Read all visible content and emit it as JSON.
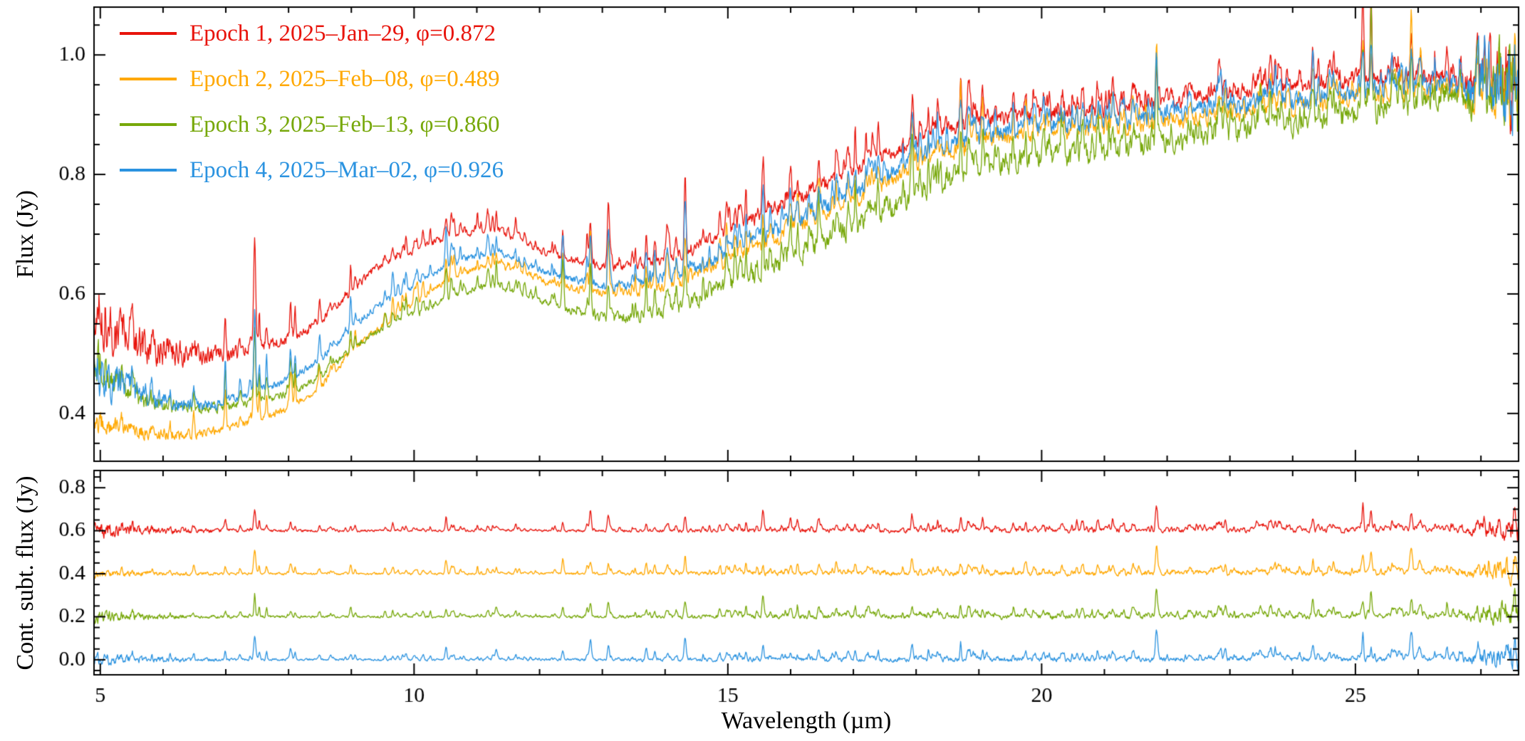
{
  "figure": {
    "background": "#ffffff",
    "axis_color": "#000000"
  },
  "legend": {
    "entries": [
      {
        "label": "Epoch 1, 2025–Jan–29, φ=0.872",
        "epoch": 1,
        "date": "2025–Jan–29",
        "phase": 0.872,
        "color": "#e8140c"
      },
      {
        "label": "Epoch 2, 2025–Feb–08, φ=0.489",
        "epoch": 2,
        "date": "2025–Feb–08",
        "phase": 0.489,
        "color": "#ffa800"
      },
      {
        "label": "Epoch 3, 2025–Feb–13, φ=0.860",
        "epoch": 3,
        "date": "2025–Feb–13",
        "phase": 0.86,
        "color": "#77a80a"
      },
      {
        "label": "Epoch 4, 2025–Mar–02, φ=0.926",
        "epoch": 4,
        "date": "2025–Mar–02",
        "phase": 0.926,
        "color": "#2b93e0"
      }
    ]
  },
  "emission_lines": {
    "wavelengths": [
      5.34,
      5.51,
      6.11,
      6.49,
      6.99,
      7.46,
      7.65,
      8.03,
      8.99,
      9.66,
      10.51,
      11.31,
      12.37,
      12.81,
      13.1,
      13.7,
      14.32,
      14.98,
      15.56,
      16.11,
      16.45,
      17.03,
      17.93,
      18.71,
      19.06,
      19.75,
      20.33,
      21.83,
      22.93,
      23.65,
      24.32,
      25.12,
      25.25,
      25.89,
      26.46,
      26.95
    ],
    "strengths": [
      0.25,
      0.2,
      0.2,
      0.25,
      0.3,
      1.0,
      0.3,
      0.2,
      0.3,
      0.25,
      0.4,
      0.3,
      0.45,
      0.6,
      0.3,
      0.3,
      0.7,
      0.4,
      0.6,
      0.35,
      0.3,
      0.45,
      0.4,
      0.65,
      0.4,
      0.35,
      0.3,
      0.9,
      0.4,
      0.35,
      0.5,
      0.9,
      0.8,
      0.7,
      0.4,
      0.5
    ]
  },
  "chart_data": [
    {
      "type": "line",
      "panel": "top",
      "title": "",
      "xlabel": "",
      "ylabel": "Flux (Jy)",
      "xlim": [
        4.9,
        27.6
      ],
      "ylim": [
        0.32,
        1.08
      ],
      "xticks": [
        5,
        10,
        15,
        20,
        25
      ],
      "yticks": [
        0.4,
        0.6,
        0.8,
        1.0
      ],
      "grid": false,
      "legend_position": "top-left",
      "x": [
        4.9,
        5.2,
        5.6,
        6.0,
        6.5,
        7.0,
        7.5,
        8.0,
        8.5,
        9.0,
        9.3,
        9.6,
        10.0,
        10.5,
        11.0,
        11.3,
        11.7,
        12.1,
        12.6,
        13.1,
        13.6,
        14.2,
        15.0,
        16.0,
        17.0,
        17.8,
        18.5,
        19.2,
        19.8,
        20.5,
        21.2,
        22.0,
        23.0,
        24.0,
        25.0,
        26.0,
        27.0,
        27.6
      ],
      "series": [
        {
          "name": "Epoch 1",
          "color": "#e8140c",
          "values": [
            0.575,
            0.545,
            0.52,
            0.505,
            0.5,
            0.5,
            0.51,
            0.525,
            0.555,
            0.6,
            0.635,
            0.655,
            0.67,
            0.695,
            0.705,
            0.705,
            0.69,
            0.67,
            0.655,
            0.645,
            0.65,
            0.665,
            0.705,
            0.755,
            0.805,
            0.845,
            0.875,
            0.89,
            0.9,
            0.905,
            0.91,
            0.92,
            0.93,
            0.94,
            0.955,
            0.95,
            0.95,
            0.93
          ]
        },
        {
          "name": "Epoch 2",
          "color": "#ffa800",
          "values": [
            0.385,
            0.375,
            0.37,
            0.365,
            0.365,
            0.375,
            0.39,
            0.41,
            0.445,
            0.5,
            0.53,
            0.555,
            0.585,
            0.62,
            0.64,
            0.645,
            0.635,
            0.62,
            0.608,
            0.6,
            0.605,
            0.62,
            0.655,
            0.705,
            0.755,
            0.8,
            0.835,
            0.855,
            0.865,
            0.87,
            0.875,
            0.885,
            0.895,
            0.908,
            0.925,
            0.928,
            0.932,
            0.92
          ]
        },
        {
          "name": "Epoch 3",
          "color": "#77a80a",
          "values": [
            0.49,
            0.455,
            0.43,
            0.415,
            0.41,
            0.412,
            0.42,
            0.435,
            0.462,
            0.505,
            0.53,
            0.548,
            0.565,
            0.59,
            0.608,
            0.61,
            0.6,
            0.585,
            0.57,
            0.558,
            0.562,
            0.578,
            0.615,
            0.66,
            0.71,
            0.755,
            0.79,
            0.815,
            0.825,
            0.83,
            0.84,
            0.85,
            0.868,
            0.88,
            0.9,
            0.912,
            0.928,
            0.928
          ]
        },
        {
          "name": "Epoch 4",
          "color": "#2b93e0",
          "values": [
            0.47,
            0.45,
            0.435,
            0.42,
            0.413,
            0.42,
            0.438,
            0.458,
            0.49,
            0.54,
            0.57,
            0.59,
            0.615,
            0.645,
            0.662,
            0.665,
            0.652,
            0.635,
            0.622,
            0.613,
            0.618,
            0.633,
            0.668,
            0.718,
            0.768,
            0.815,
            0.848,
            0.868,
            0.878,
            0.882,
            0.888,
            0.898,
            0.908,
            0.918,
            0.935,
            0.938,
            0.94,
            0.928
          ]
        }
      ]
    },
    {
      "type": "line",
      "panel": "bottom",
      "title": "",
      "xlabel": "Wavelength (µm)",
      "ylabel": "Cont. subt. flux (Jy)",
      "xlim": [
        4.9,
        27.6
      ],
      "ylim": [
        -0.07,
        0.88
      ],
      "xticks": [
        5,
        10,
        15,
        20,
        25
      ],
      "yticks": [
        0.0,
        0.2,
        0.4,
        0.6,
        0.8
      ],
      "grid": false,
      "series": [
        {
          "name": "Epoch 1",
          "color": "#e8140c",
          "offset": 0.6
        },
        {
          "name": "Epoch 2",
          "color": "#ffa800",
          "offset": 0.4
        },
        {
          "name": "Epoch 3",
          "color": "#77a80a",
          "offset": 0.2
        },
        {
          "name": "Epoch 4",
          "color": "#2b93e0",
          "offset": 0.0
        }
      ]
    }
  ]
}
